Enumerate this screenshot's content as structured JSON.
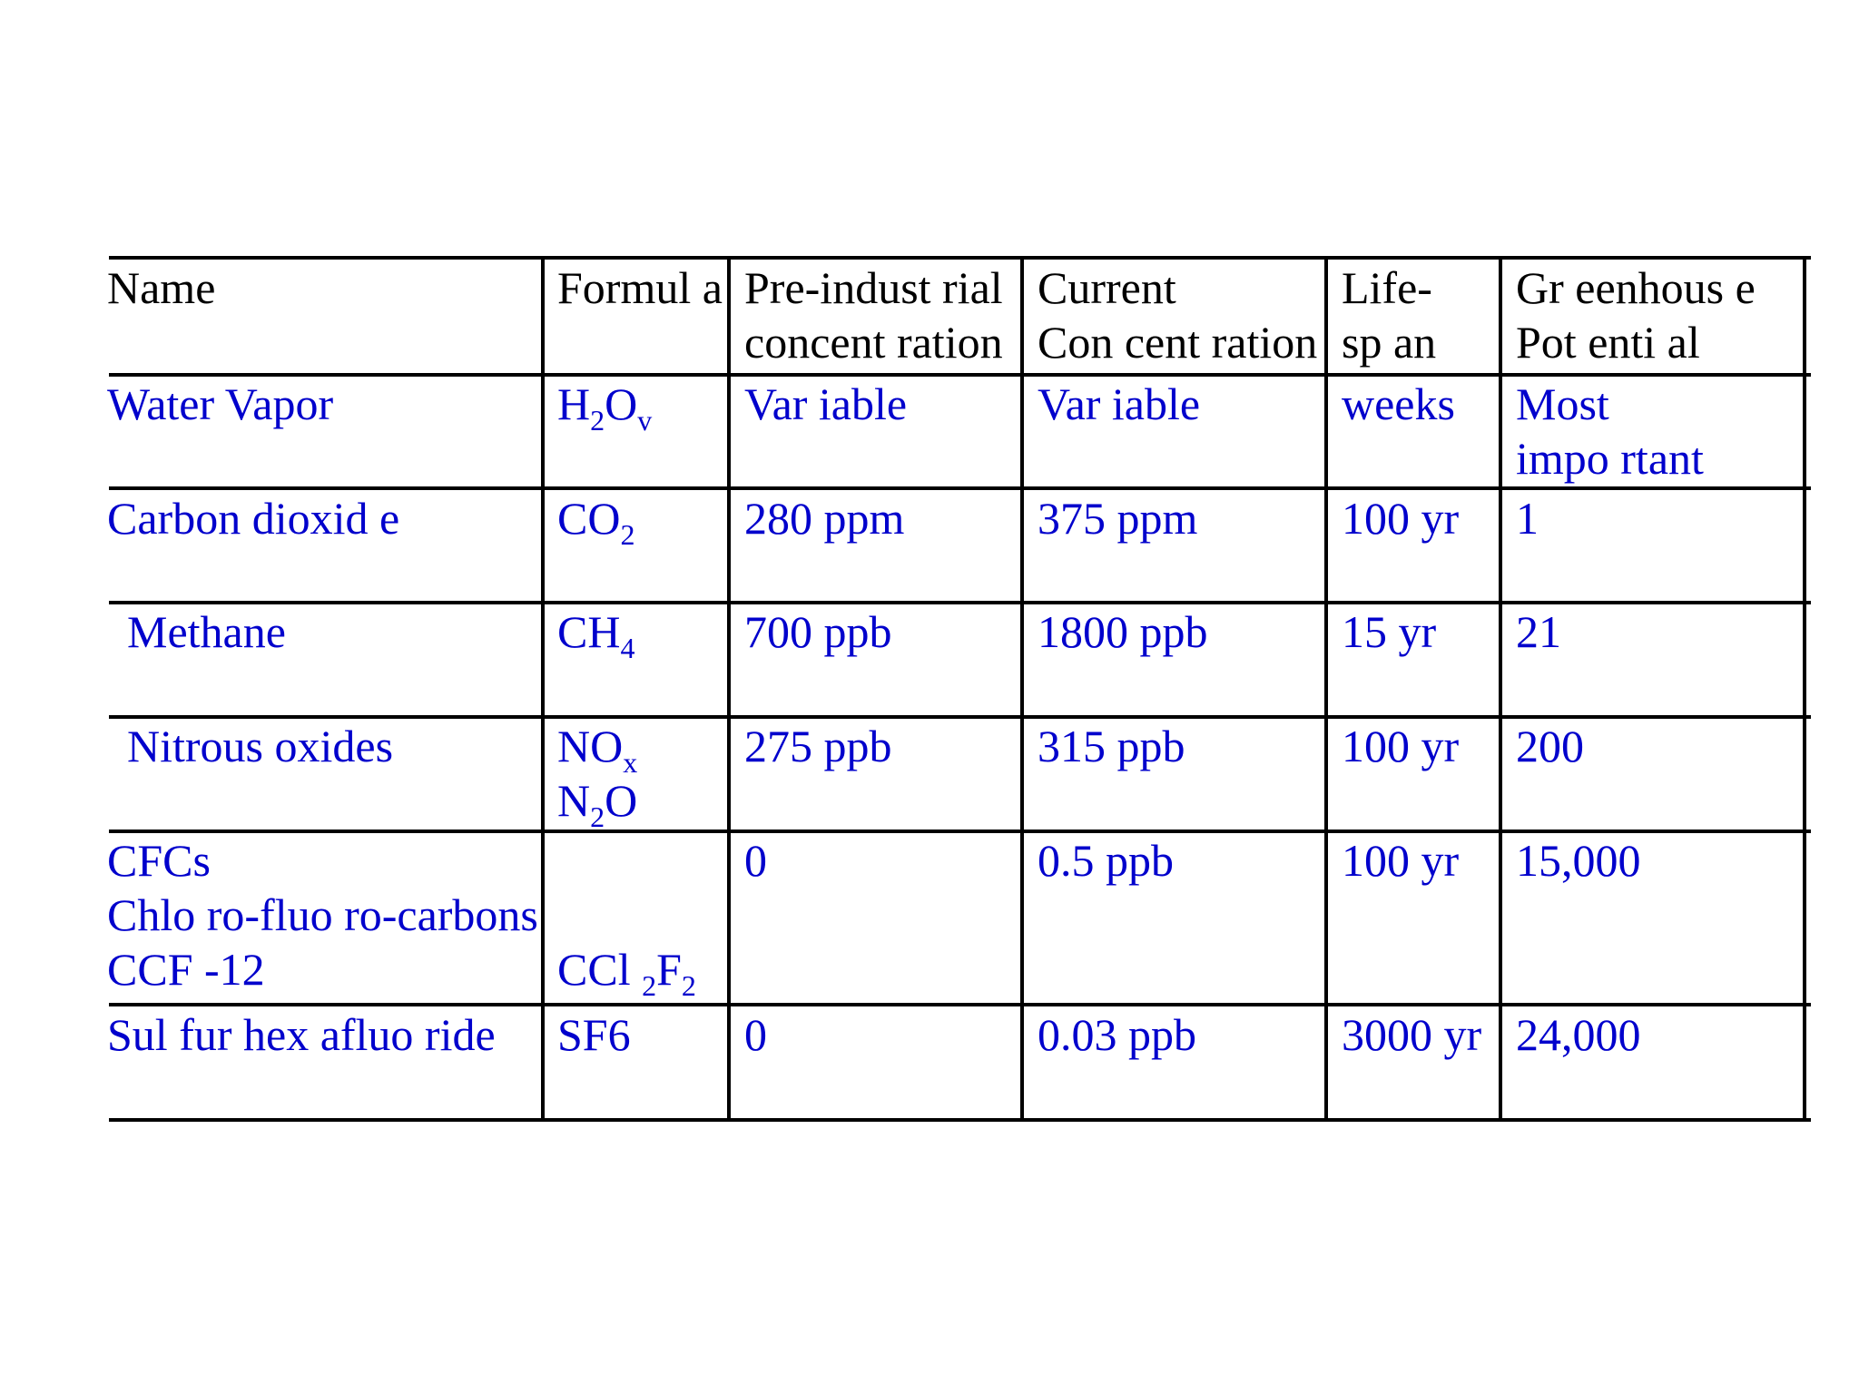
{
  "table": {
    "headers": [
      {
        "line1": "Name",
        "line2": ""
      },
      {
        "line1": "Formul a",
        "line2": ""
      },
      {
        "line1": "Pre-indust rial",
        "line2": "concent ration"
      },
      {
        "line1": "Current",
        "line2": "Con cent ration"
      },
      {
        "line1": "Life-",
        "line2": "sp an"
      },
      {
        "line1": "Gr eenhous  e",
        "line2": "Pot enti al"
      }
    ],
    "rows": [
      {
        "name": [
          "Water Vapor"
        ],
        "formula": {
          "base1": "H",
          "sub1": "2",
          "base2": "O",
          "sub2": "v"
        },
        "pre_industrial": [
          "Var iable"
        ],
        "current": [
          "Var iable"
        ],
        "lifespan": "weeks",
        "potential": [
          "Most",
          "impo rtant"
        ]
      },
      {
        "name": [
          "Carbon dioxid  e"
        ],
        "formula": {
          "base1": "CO",
          "sub1": "2"
        },
        "pre_industrial": [
          "280 ppm"
        ],
        "current": [
          "375 ppm"
        ],
        "lifespan": "100 yr",
        "potential": [
          "1"
        ]
      },
      {
        "name": [
          "Methane"
        ],
        "formula": {
          "base1": "CH",
          "sub1": "4"
        },
        "pre_industrial": [
          "700 ppb"
        ],
        "current": [
          "1800 ppb"
        ],
        "lifespan": "15 yr",
        "potential": [
          "21"
        ]
      },
      {
        "name": [
          "Nitrous  oxides"
        ],
        "formula": {
          "base1": "NO",
          "sub1": "x",
          "l2_base1": "N",
          "l2_sub1": "2",
          "l2_base2": "O"
        },
        "pre_industrial": [
          "275 ppb"
        ],
        "current": [
          "315 ppb"
        ],
        "lifespan": "100 yr",
        "potential": [
          "200"
        ]
      },
      {
        "name": [
          "CFCs",
          "Chlo ro-fluo ro-carbons",
          "CCF -12"
        ],
        "formula": {
          "base1": "CCl ",
          "sub1": "2",
          "base2": "F",
          "sub2": "2"
        },
        "pre_industrial": [
          "0"
        ],
        "current": [
          "0.5 ppb"
        ],
        "lifespan": "100 yr",
        "potential": [
          "15,000"
        ]
      },
      {
        "name": [
          "Sul fur hex afluo ride"
        ],
        "formula": {
          "base1": "SF6"
        },
        "pre_industrial": [
          "0"
        ],
        "current": [
          "0.03 ppb"
        ],
        "lifespan": "3000 yr",
        "potential": [
          "24,000"
        ]
      }
    ]
  }
}
